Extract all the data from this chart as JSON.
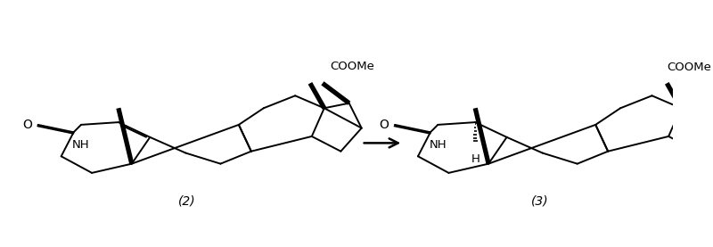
{
  "background_color": "#ffffff",
  "lw": 1.4,
  "wedge_lw": 3.8,
  "hash_lw": 1.2,
  "figsize": [
    8.0,
    2.77
  ],
  "dpi": 100,
  "label_2": "(2)",
  "label_3": "(3)",
  "coome": "COOMe",
  "o_label": "O",
  "nh_label": "NH",
  "h_label": "H"
}
